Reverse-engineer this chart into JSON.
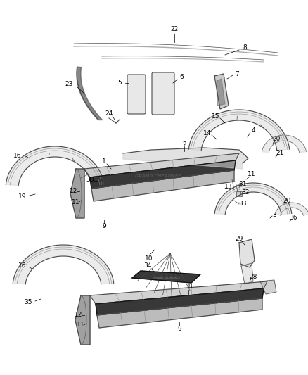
{
  "bg_color": "#ffffff",
  "lc": "#4a4a4a",
  "label_color": "#000000",
  "figsize": [
    4.38,
    5.33
  ],
  "dpi": 100
}
